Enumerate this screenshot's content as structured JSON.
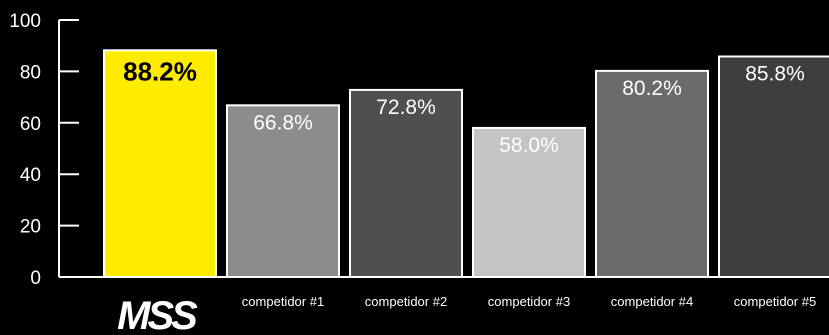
{
  "chart_data": {
    "type": "bar",
    "categories": [
      "MSS",
      "competidor #1",
      "competidor #2",
      "competidor #3",
      "competidor #4",
      "competidor #5"
    ],
    "values": [
      88.2,
      66.8,
      72.8,
      58.0,
      80.2,
      85.8
    ],
    "value_labels": [
      "88.2%",
      "66.8%",
      "72.8%",
      "58.0%",
      "80.2%",
      "85.8%"
    ],
    "ylim": [
      0,
      100
    ],
    "yticks": [
      "0",
      "20",
      "40",
      "60",
      "80",
      "100"
    ],
    "title": "",
    "xlabel": "",
    "ylabel": "",
    "grid": false,
    "legend": "none",
    "colors": [
      "#FFEB00",
      "#8C8C8C",
      "#4F4F4F",
      "#C4C4C4",
      "#6B6B6B",
      "#3E3E3E"
    ],
    "bar_outline": "#FFFFFF",
    "highlight_index": 0,
    "first_category_rendered_as_logo": true
  }
}
